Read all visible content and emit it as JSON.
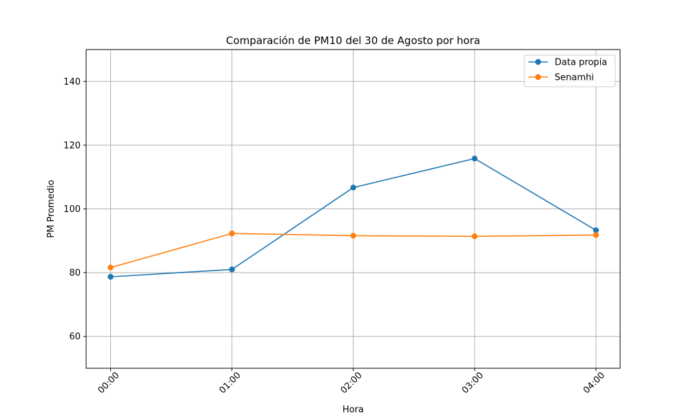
{
  "chart_data": {
    "type": "line",
    "title": "Comparación de PM10 del 30 de Agosto por hora",
    "xlabel": "Hora",
    "ylabel": "PM Promedio",
    "categories": [
      "00:00",
      "01:00",
      "02:00",
      "03:00",
      "04:00"
    ],
    "ylim": [
      50,
      150
    ],
    "yticks": [
      60,
      80,
      100,
      120,
      140
    ],
    "grid": true,
    "legend_position": "top-right",
    "series": [
      {
        "name": "Data propia",
        "color": "#1f77b4",
        "values": [
          78.7,
          81.0,
          106.7,
          115.8,
          93.3
        ]
      },
      {
        "name": "Senamhi",
        "color": "#ff7f0e",
        "values": [
          81.6,
          92.3,
          91.6,
          91.4,
          91.8
        ]
      }
    ]
  }
}
